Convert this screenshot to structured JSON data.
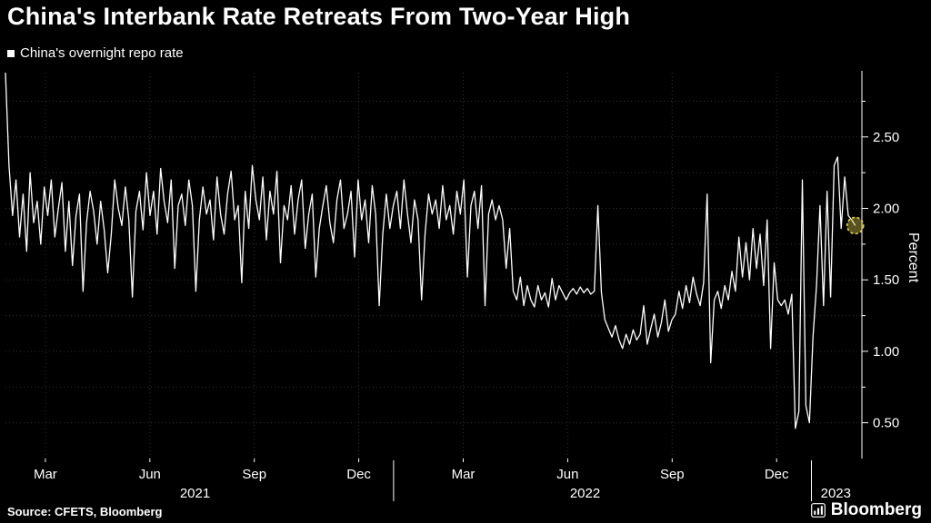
{
  "title": "China's Interbank Rate Retreats From Two-Year High",
  "legend": {
    "label": "China's overnight repo rate",
    "swatch_color": "#ffffff"
  },
  "source": "Source: CFETS, Bloomberg",
  "brand": "Bloomberg",
  "colors": {
    "background": "#000000",
    "line": "#ffffff",
    "grid": "#2f2f2f",
    "highlight": "#e8d74e"
  },
  "chart_data": {
    "type": "line",
    "title": "China's Interbank Rate Retreats From Two-Year High",
    "ylabel": "Percent",
    "unit": "%",
    "ylim": [
      0.25,
      2.95
    ],
    "yticks": [
      0.5,
      1.0,
      1.5,
      2.0,
      2.5
    ],
    "grid": true,
    "legend_position": "top-left",
    "x_axis": {
      "domain_months": [
        0.855,
        25.45
      ],
      "ticks": [
        {
          "label": "Mar",
          "month": 2
        },
        {
          "label": "Jun",
          "month": 5
        },
        {
          "label": "Sep",
          "month": 8
        },
        {
          "label": "Dec",
          "month": 11
        },
        {
          "label": "Mar",
          "month": 14
        },
        {
          "label": "Jun",
          "month": 17
        },
        {
          "label": "Sep",
          "month": 20
        },
        {
          "label": "Dec",
          "month": 23
        }
      ],
      "year_labels": [
        {
          "label": "2021",
          "month": 6.3
        },
        {
          "label": "2022",
          "month": 17.5
        },
        {
          "label": "2023",
          "month": 24.7
        }
      ],
      "year_divider_months": [
        12,
        24
      ]
    },
    "series": [
      {
        "name": "China's overnight repo rate",
        "color": "#ffffff",
        "month_range": [
          0.855,
          25.26
        ],
        "values": [
          2.95,
          2.3,
          1.95,
          2.2,
          1.8,
          2.1,
          1.7,
          2.25,
          1.9,
          2.05,
          1.75,
          2.15,
          1.95,
          2.2,
          1.8,
          2.0,
          2.18,
          1.7,
          2.05,
          1.6,
          1.95,
          2.1,
          1.42,
          1.9,
          2.12,
          1.98,
          1.75,
          2.05,
          1.85,
          1.55,
          1.82,
          2.2,
          2.0,
          1.88,
          2.15,
          1.92,
          1.38,
          1.98,
          2.12,
          1.85,
          2.25,
          1.95,
          2.12,
          1.82,
          2.28,
          2.05,
          1.9,
          2.2,
          1.58,
          2.02,
          2.1,
          1.88,
          2.2,
          2.02,
          1.42,
          1.92,
          2.15,
          1.96,
          2.06,
          1.78,
          2.22,
          1.96,
          1.82,
          2.1,
          2.26,
          1.92,
          2.02,
          1.48,
          2.12,
          1.86,
          2.3,
          2.06,
          1.92,
          2.22,
          1.78,
          2.12,
          1.96,
          2.26,
          1.62,
          2.02,
          1.92,
          2.16,
          1.82,
          2.06,
          2.2,
          1.72,
          1.96,
          2.1,
          1.52,
          1.86,
          2.02,
          2.16,
          1.9,
          1.76,
          2.06,
          2.2,
          1.86,
          1.96,
          2.12,
          1.66,
          2.2,
          1.92,
          2.06,
          1.76,
          2.16,
          1.96,
          1.32,
          1.82,
          2.1,
          1.86,
          2.02,
          2.12,
          1.86,
          2.2,
          1.96,
          1.76,
          2.06,
          1.92,
          1.36,
          1.82,
          2.1,
          1.96,
          2.06,
          1.86,
          2.16,
          1.92,
          2.02,
          1.82,
          2.12,
          1.96,
          2.2,
          1.52,
          2.02,
          2.12,
          1.86,
          2.16,
          1.32,
          1.96,
          2.06,
          1.92,
          2.02,
          1.92,
          1.58,
          1.86,
          1.42,
          1.36,
          1.52,
          1.32,
          1.46,
          1.36,
          1.31,
          1.46,
          1.36,
          1.41,
          1.31,
          1.51,
          1.36,
          1.46,
          1.41,
          1.36,
          1.41,
          1.44,
          1.4,
          1.45,
          1.41,
          1.44,
          1.4,
          1.42,
          2.02,
          1.41,
          1.22,
          1.16,
          1.1,
          1.18,
          1.08,
          1.02,
          1.12,
          1.05,
          1.15,
          1.08,
          1.12,
          1.32,
          1.05,
          1.16,
          1.26,
          1.1,
          1.2,
          1.36,
          1.14,
          1.22,
          1.26,
          1.42,
          1.3,
          1.46,
          1.34,
          1.52,
          1.4,
          1.32,
          1.48,
          2.1,
          0.92,
          1.36,
          1.42,
          1.3,
          1.46,
          1.36,
          1.56,
          1.42,
          1.8,
          1.52,
          1.76,
          1.5,
          1.86,
          1.58,
          1.82,
          1.46,
          1.92,
          1.02,
          1.62,
          1.36,
          1.32,
          1.36,
          1.26,
          1.4,
          0.46,
          0.58,
          2.2,
          0.62,
          0.5,
          1.1,
          1.46,
          2.02,
          1.32,
          2.12,
          1.38,
          2.3,
          2.36,
          1.86,
          2.22,
          1.95,
          1.92,
          1.88
        ]
      }
    ],
    "last_point": {
      "value": 1.88,
      "highlighted": true
    }
  }
}
